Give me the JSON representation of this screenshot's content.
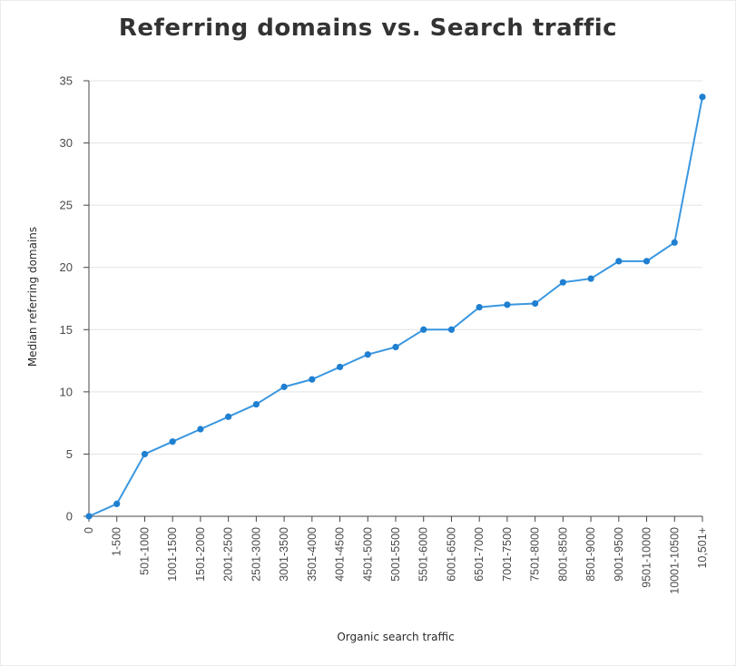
{
  "chart_data": {
    "type": "line",
    "title": "Referring domains vs. Search traffic",
    "xlabel": "Organic search traffic",
    "ylabel": "Median referring domains",
    "categories": [
      "0",
      "1-500",
      "501-1000",
      "1001-1500",
      "1501-2000",
      "2001-2500",
      "2501-3000",
      "3001-3500",
      "3501-4000",
      "4001-4500",
      "4501-5000",
      "5001-5500",
      "5501-6000",
      "6001-6500",
      "6501-7000",
      "7001-7500",
      "7501-8000",
      "8001-8500",
      "8501-9000",
      "9001-9500",
      "9501-10000",
      "10001-10500",
      "10,501+"
    ],
    "series": [
      {
        "values": [
          0,
          1,
          5,
          6,
          7,
          8,
          9,
          10.4,
          11,
          12,
          13,
          13.6,
          15,
          15,
          16.8,
          17,
          17.1,
          18.8,
          19.1,
          20.5,
          20.5,
          22,
          33.7
        ]
      }
    ],
    "yticks": [
      0,
      5,
      10,
      15,
      20,
      25,
      30,
      35
    ],
    "ylim": [
      0,
      35
    ],
    "grid": true,
    "legend": "none",
    "colors": {
      "line": "#3a97e0",
      "marker": "#1f7fd1",
      "grid": "#e3e3e3",
      "axis": "#444444"
    }
  }
}
